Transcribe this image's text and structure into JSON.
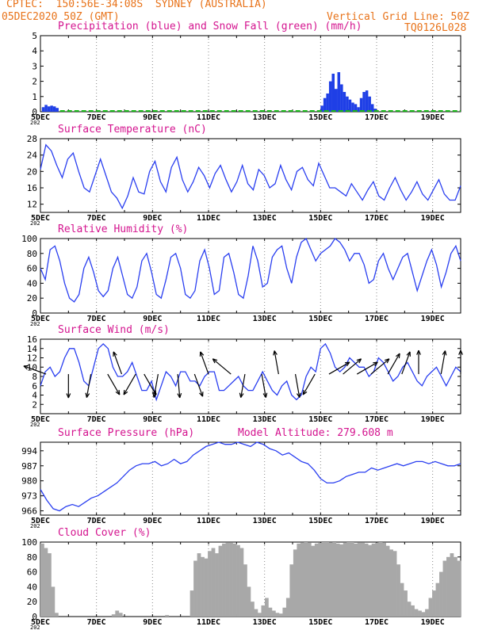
{
  "header": {
    "line1_left": "CPTEC:  150:56E-34:08S  SYDNEY (AUSTRALIA)",
    "line2_left": "05DEC2020 50Z (GMT)",
    "line2_right": "Vertical Grid Line: 50Z",
    "code": "TQ0126L028"
  },
  "x_ticks": [
    "5DEC",
    "7DEC",
    "9DEC",
    "11DEC",
    "13DEC",
    "15DEC",
    "17DEC",
    "19DEC"
  ],
  "year_stub": "202",
  "colors": {
    "header": "#e8731a",
    "title": "#d4148f",
    "precip": "#1f3fe6",
    "snow": "#18b818",
    "line": "#2a3ff0",
    "wind_arrow": "#000000",
    "cloud": "#a8a8a8"
  },
  "chart_data": [
    {
      "id": "precip",
      "type": "bar",
      "title": "Precipitation (blue) and Snow Fall (green) (mm/h)",
      "ylim": [
        0,
        5
      ],
      "yticks": [
        "0",
        "1",
        "2",
        "3",
        "4",
        "5"
      ],
      "series": [
        {
          "name": "Precipitation",
          "color": "#1f3fe6",
          "points": [
            [
              0.05,
              0.3
            ],
            [
              0.15,
              0.45
            ],
            [
              0.25,
              0.35
            ],
            [
              0.35,
              0.4
            ],
            [
              0.45,
              0.35
            ],
            [
              0.55,
              0.25
            ],
            [
              10.0,
              0.4
            ],
            [
              10.1,
              0.9
            ],
            [
              10.2,
              1.2
            ],
            [
              10.3,
              2.0
            ],
            [
              10.4,
              2.5
            ],
            [
              10.5,
              1.5
            ],
            [
              10.6,
              2.6
            ],
            [
              10.7,
              1.8
            ],
            [
              10.8,
              1.3
            ],
            [
              10.9,
              1.0
            ],
            [
              11.0,
              0.8
            ],
            [
              11.1,
              0.6
            ],
            [
              11.2,
              0.5
            ],
            [
              11.3,
              0.3
            ],
            [
              11.4,
              0.9
            ],
            [
              11.5,
              1.3
            ],
            [
              11.6,
              1.4
            ],
            [
              11.7,
              1.0
            ],
            [
              11.8,
              0.5
            ],
            [
              11.9,
              0.2
            ]
          ]
        },
        {
          "name": "Snow Fall",
          "color": "#18b818",
          "points": []
        }
      ]
    },
    {
      "id": "temp",
      "type": "line",
      "title": "Surface Temperature (nC)",
      "ylim": [
        10,
        28
      ],
      "yticks": [
        "12",
        "16",
        "20",
        "24",
        "28"
      ],
      "series": [
        {
          "name": "Temperature",
          "values": [
            20.5,
            26.5,
            25.0,
            21.5,
            18.5,
            23.0,
            24.5,
            20.0,
            16.0,
            15.0,
            19.0,
            23.0,
            19.0,
            15.0,
            13.5,
            11.0,
            14.0,
            18.5,
            15.0,
            14.5,
            20.0,
            22.5,
            17.5,
            15.0,
            21.0,
            23.5,
            18.0,
            15.0,
            17.5,
            21.0,
            19.0,
            16.0,
            19.5,
            21.5,
            18.0,
            15.0,
            17.5,
            21.5,
            17.0,
            15.5,
            20.5,
            19.0,
            16.0,
            17.0,
            21.5,
            18.0,
            15.5,
            20.0,
            21.0,
            18.0,
            16.5,
            22.0,
            19.0,
            16.0,
            16.0,
            15.0,
            14.0,
            17.0,
            15.0,
            13.0,
            15.5,
            17.5,
            14.0,
            13.0,
            16.0,
            18.5,
            15.5,
            13.0,
            15.0,
            17.5,
            14.5,
            13.0,
            15.5,
            18.0,
            14.5,
            13.0,
            13.0,
            16.5
          ]
        }
      ]
    },
    {
      "id": "rh",
      "type": "line",
      "title": "Relative Humidity (%)",
      "ylim": [
        0,
        100
      ],
      "yticks": [
        "0",
        "20",
        "40",
        "60",
        "80",
        "100"
      ],
      "series": [
        {
          "name": "Relative Humidity",
          "values": [
            60,
            45,
            85,
            90,
            70,
            40,
            20,
            15,
            25,
            60,
            75,
            55,
            30,
            22,
            30,
            60,
            75,
            50,
            25,
            20,
            35,
            70,
            80,
            55,
            25,
            20,
            45,
            75,
            80,
            60,
            25,
            20,
            30,
            70,
            85,
            60,
            25,
            30,
            75,
            80,
            55,
            25,
            20,
            50,
            90,
            70,
            35,
            40,
            75,
            85,
            90,
            60,
            40,
            75,
            95,
            100,
            85,
            70,
            80,
            85,
            90,
            100,
            95,
            85,
            70,
            80,
            80,
            65,
            40,
            45,
            70,
            80,
            60,
            45,
            60,
            75,
            80,
            55,
            30,
            50,
            70,
            85,
            65,
            35,
            55,
            80,
            90,
            70
          ]
        }
      ]
    },
    {
      "id": "wind",
      "type": "line",
      "title": "Surface Wind (m/s)",
      "ylim": [
        0,
        16
      ],
      "yticks": [
        "2",
        "4",
        "6",
        "8",
        "10",
        "12",
        "14",
        "16"
      ],
      "series": [
        {
          "name": "Wind speed",
          "values": [
            6,
            9,
            10,
            8,
            9,
            12,
            14,
            14,
            11,
            7,
            6,
            10,
            14,
            15,
            14,
            10,
            8,
            8,
            9,
            11,
            8,
            5,
            5,
            7,
            3,
            6,
            9,
            8,
            6,
            9,
            9,
            7,
            7,
            6,
            8,
            9,
            9,
            5,
            5,
            6,
            7,
            8,
            6,
            5,
            5,
            7,
            9,
            7,
            5,
            4,
            6,
            7,
            4,
            3,
            4,
            8,
            10,
            9,
            14,
            15,
            13,
            10,
            9,
            10,
            12,
            11,
            10,
            10,
            8,
            9,
            12,
            11,
            9,
            7,
            8,
            10,
            11,
            9,
            7,
            6,
            8,
            9,
            10,
            8,
            6,
            8,
            10,
            9
          ]
        }
      ],
      "vectors": [
        [
          0.2,
          200
        ],
        [
          1.0,
          90
        ],
        [
          1.8,
          100
        ],
        [
          2.4,
          60
        ],
        [
          2.9,
          250
        ],
        [
          3.4,
          120
        ],
        [
          3.7,
          60
        ],
        [
          4.2,
          100
        ],
        [
          4.9,
          85
        ],
        [
          5.5,
          70
        ],
        [
          6.0,
          250
        ],
        [
          6.8,
          220
        ],
        [
          7.3,
          100
        ],
        [
          7.9,
          80
        ],
        [
          8.5,
          260
        ],
        [
          9.1,
          80
        ],
        [
          9.8,
          120
        ],
        [
          10.3,
          330
        ],
        [
          10.8,
          320
        ],
        [
          11.3,
          330
        ],
        [
          11.8,
          320
        ],
        [
          12.4,
          300
        ],
        [
          12.9,
          290
        ],
        [
          13.5,
          270
        ],
        [
          14.3,
          280
        ],
        [
          15.0,
          270
        ]
      ]
    },
    {
      "id": "pres",
      "type": "line",
      "title": "Surface Pressure (hPa)",
      "annotation": "Model Altitude: 279.608 m",
      "ylim": [
        964,
        998
      ],
      "yticks": [
        "966",
        "973",
        "980",
        "987",
        "994"
      ],
      "series": [
        {
          "name": "Pressure",
          "values": [
            976,
            971,
            967,
            966,
            968,
            969,
            968,
            970,
            972,
            973,
            975,
            977,
            979,
            982,
            985,
            987,
            988,
            988,
            989,
            987,
            988,
            990,
            988,
            989,
            992,
            994,
            996,
            997,
            998,
            997,
            997,
            998,
            997,
            996,
            998,
            997,
            995,
            994,
            992,
            993,
            991,
            989,
            988,
            985,
            981,
            979,
            979,
            980,
            982,
            983,
            984,
            984,
            986,
            985,
            986,
            987,
            988,
            987,
            988,
            989,
            989,
            988,
            989,
            988,
            987,
            987,
            988
          ]
        }
      ]
    },
    {
      "id": "cloud",
      "type": "bar",
      "title": "Cloud Cover (%)",
      "ylim": [
        0,
        100
      ],
      "yticks": [
        "0",
        "20",
        "40",
        "60",
        "80",
        "100"
      ],
      "series": [
        {
          "name": "Cloud Cover",
          "values": [
            98,
            92,
            85,
            40,
            5,
            0,
            0,
            0,
            0,
            0,
            0,
            0,
            0,
            0,
            0,
            0,
            0,
            0,
            0,
            0,
            3,
            8,
            5,
            0,
            0,
            0,
            0,
            0,
            0,
            0,
            0,
            0,
            0,
            0,
            0,
            2,
            0,
            0,
            0,
            0,
            0,
            0,
            35,
            75,
            85,
            80,
            78,
            88,
            92,
            85,
            95,
            98,
            99,
            99,
            98,
            96,
            92,
            70,
            40,
            20,
            10,
            5,
            15,
            25,
            12,
            8,
            5,
            4,
            12,
            25,
            70,
            90,
            98,
            99,
            100,
            99,
            95,
            98,
            99,
            100,
            100,
            99,
            100,
            98,
            97,
            99,
            100,
            100,
            98,
            99,
            99,
            98,
            96,
            98,
            99,
            100,
            99,
            95,
            90,
            88,
            70,
            45,
            35,
            20,
            15,
            10,
            8,
            6,
            10,
            25,
            35,
            45,
            60,
            75,
            80,
            85,
            80,
            75
          ]
        }
      ]
    }
  ]
}
